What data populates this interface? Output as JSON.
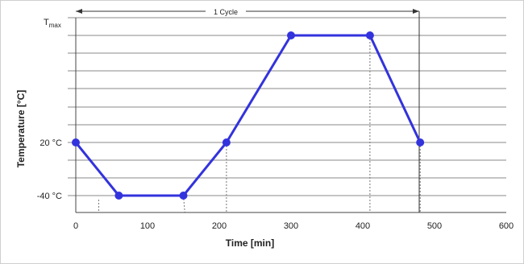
{
  "chart_data": {
    "type": "line",
    "xlabel": "Time [min]",
    "ylabel": "Temperature [°C]",
    "x_ticks": [
      0,
      100,
      200,
      300,
      400,
      500,
      600
    ],
    "xlim": [
      0,
      600
    ],
    "y_tick_labels": {
      "tmax_main": "T",
      "tmax_sub": "max",
      "mid": "20 °C",
      "low": "-40 °C"
    },
    "cycle_annotation": {
      "label": "1 Cycle",
      "x_start": 0,
      "x_end": 480
    },
    "series": [
      {
        "points": [
          {
            "x": 0,
            "y": "20 °C"
          },
          {
            "x": 60,
            "y": "-40 °C"
          },
          {
            "x": 150,
            "y": "-40 °C"
          },
          {
            "x": 210,
            "y": "20 °C"
          },
          {
            "x": 300,
            "y": "Tmax"
          },
          {
            "x": 410,
            "y": "Tmax"
          },
          {
            "x": 480,
            "y": "20 °C"
          }
        ]
      }
    ],
    "line_color": "#3333dd",
    "grid": true
  }
}
